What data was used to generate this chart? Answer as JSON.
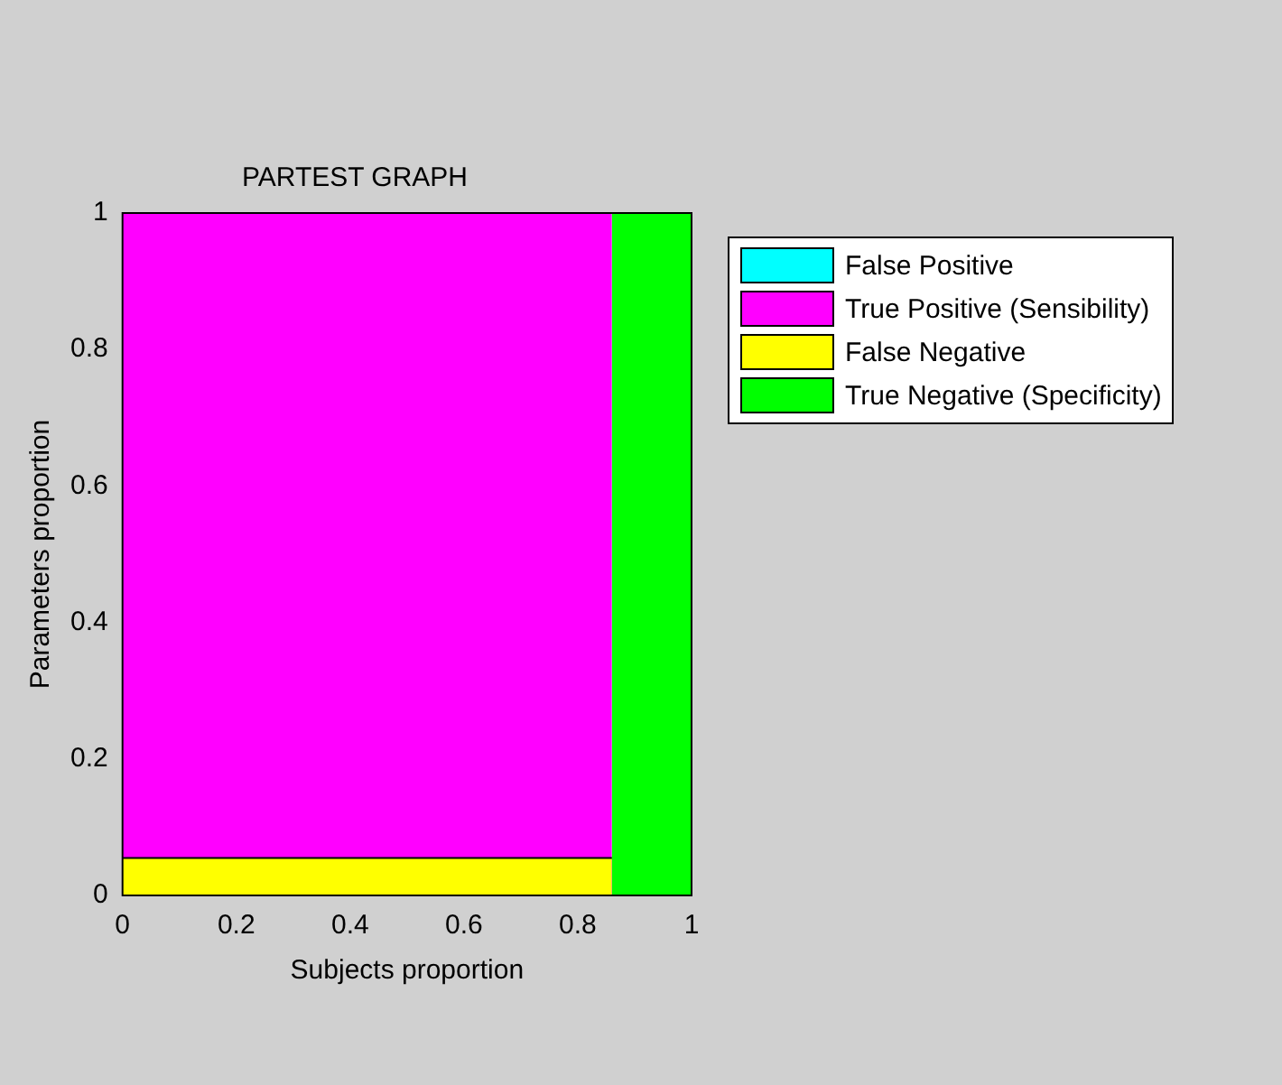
{
  "chart_data": {
    "type": "area",
    "title": "PARTEST GRAPH",
    "xlabel": "Subjects proportion",
    "ylabel": "Parameters proportion",
    "series": [
      {
        "name": "False Positive",
        "color": "#00ffff"
      },
      {
        "name": "True Positive (Sensibility)",
        "color": "#ff00ff",
        "x": [
          0,
          0.86
        ],
        "values": [
          1,
          1
        ]
      },
      {
        "name": "False Negative",
        "color": "#ffff00",
        "x": [
          0,
          0.86
        ],
        "values": [
          0.055,
          0.055
        ]
      },
      {
        "name": "True Negative (Specificity)",
        "color": "#00ff00",
        "x": [
          0.86,
          1
        ],
        "values": [
          1,
          1
        ]
      }
    ],
    "xlim": [
      0,
      1
    ],
    "ylim": [
      0,
      1
    ],
    "xticks": [
      0,
      0.2,
      0.4,
      0.6,
      0.8,
      1
    ],
    "yticks": [
      0,
      0.2,
      0.4,
      0.6,
      0.8,
      1
    ],
    "grid": false,
    "legend": "top right",
    "marker": "none"
  }
}
